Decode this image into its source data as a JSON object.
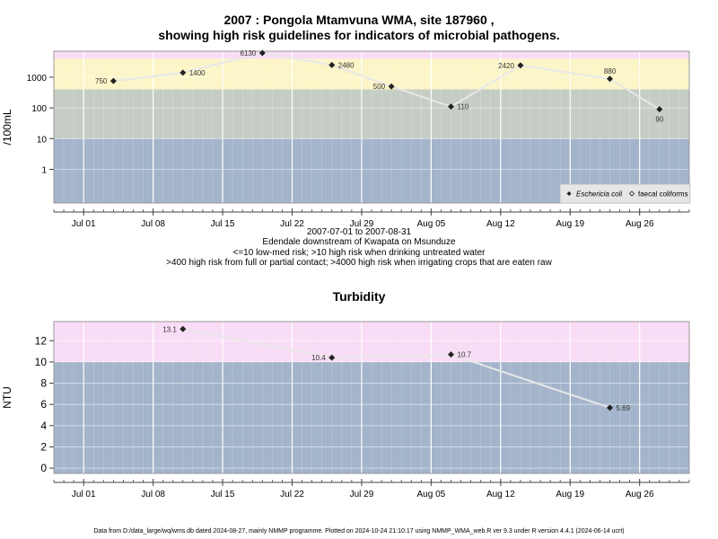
{
  "chart1": {
    "title_line1": "2007 : Pongola Mtamvuna WMA, site 187960 ,",
    "title_line2": "showing high risk guidelines for indicators of microbial pathogens.",
    "ylabel": "/100mL",
    "legend": {
      "ecoli": "Eschericia coli",
      "faecal": "faecal coliforms"
    },
    "notes": [
      "2007-07-01 to 2007-08-31",
      "Edendale downstream of Kwapata on Msunduze",
      "<=10 low-med risk; >10 high risk when drinking untreated water",
      ">400 high risk from full or partial contact; >4000 high risk when irrigating crops that are eaten raw"
    ]
  },
  "chart2": {
    "title": "Turbidity",
    "ylabel": "NTU"
  },
  "footer": "Data from D:/data_large/wq/wms.db dated 2024-08-27, mainly NMMP programme. Plotted on 2024-10-24 21:10:17 using NMMP_WMA_web.R ver 9.3 under R version 4.4.1 (2024-06-14 ucrt)",
  "chart_data": [
    {
      "type": "line",
      "y_scale": "log",
      "ylim": [
        0.08,
        7000
      ],
      "yticks": [
        1,
        10,
        100,
        1000
      ],
      "ytick_labels": [
        "1",
        "10",
        "100",
        "1000"
      ],
      "x_ticks": [
        "Jul 01",
        "Jul 08",
        "Jul 15",
        "Jul 22",
        "Jul 29",
        "Aug 05",
        "Aug 12",
        "Aug 19",
        "Aug 26"
      ],
      "xlim": [
        "2007-06-28",
        "2007-08-31"
      ],
      "bands": [
        {
          "from": 0.08,
          "to": 10,
          "color": "#a3b4cb"
        },
        {
          "from": 10,
          "to": 400,
          "color": "#c5cdc4"
        },
        {
          "from": 400,
          "to": 4000,
          "color": "#fbf5c8"
        },
        {
          "from": 4000,
          "to": 7000,
          "color": "#f9dcf6"
        }
      ],
      "series": [
        {
          "name": "Eschericia coli",
          "points": [
            {
              "x": "2007-07-04",
              "y": 750,
              "label": "750",
              "pos": "left"
            },
            {
              "x": "2007-07-11",
              "y": 1400,
              "label": "1400",
              "pos": "right"
            },
            {
              "x": "2007-07-19",
              "y": 6130,
              "label": "6130",
              "pos": "left"
            },
            {
              "x": "2007-07-26",
              "y": 2480,
              "label": "2480",
              "pos": "right"
            },
            {
              "x": "2007-08-01",
              "y": 500,
              "label": "500",
              "pos": "left"
            },
            {
              "x": "2007-08-07",
              "y": 110,
              "label": "110",
              "pos": "right"
            },
            {
              "x": "2007-08-14",
              "y": 2420,
              "label": "2420",
              "pos": "left"
            },
            {
              "x": "2007-08-23",
              "y": 880,
              "label": "880",
              "pos": "above"
            },
            {
              "x": "2007-08-28",
              "y": 90,
              "label": "90",
              "pos": "below"
            }
          ]
        }
      ]
    },
    {
      "type": "line",
      "ylim": [
        -0.5,
        13.8
      ],
      "yticks": [
        0,
        2,
        4,
        6,
        8,
        10,
        12
      ],
      "ytick_labels": [
        "0",
        "2",
        "4",
        "6",
        "8",
        "10",
        "12"
      ],
      "x_ticks": [
        "Jul 01",
        "Jul 08",
        "Jul 15",
        "Jul 22",
        "Jul 29",
        "Aug 05",
        "Aug 12",
        "Aug 19",
        "Aug 26"
      ],
      "xlim": [
        "2007-06-28",
        "2007-08-31"
      ],
      "bands": [
        {
          "from": -0.5,
          "to": 10,
          "color": "#a3b4cb"
        },
        {
          "from": 10,
          "to": 13.8,
          "color": "#f9dcf6"
        }
      ],
      "series": [
        {
          "name": "Turbidity",
          "points": [
            {
              "x": "2007-07-11",
              "y": 13.1,
              "label": "13.1",
              "pos": "left"
            },
            {
              "x": "2007-07-26",
              "y": 10.4,
              "label": "10.4",
              "pos": "left"
            },
            {
              "x": "2007-08-07",
              "y": 10.7,
              "label": "10.7",
              "pos": "right"
            },
            {
              "x": "2007-08-23",
              "y": 5.69,
              "label": "5.69",
              "pos": "right"
            }
          ]
        }
      ]
    }
  ]
}
